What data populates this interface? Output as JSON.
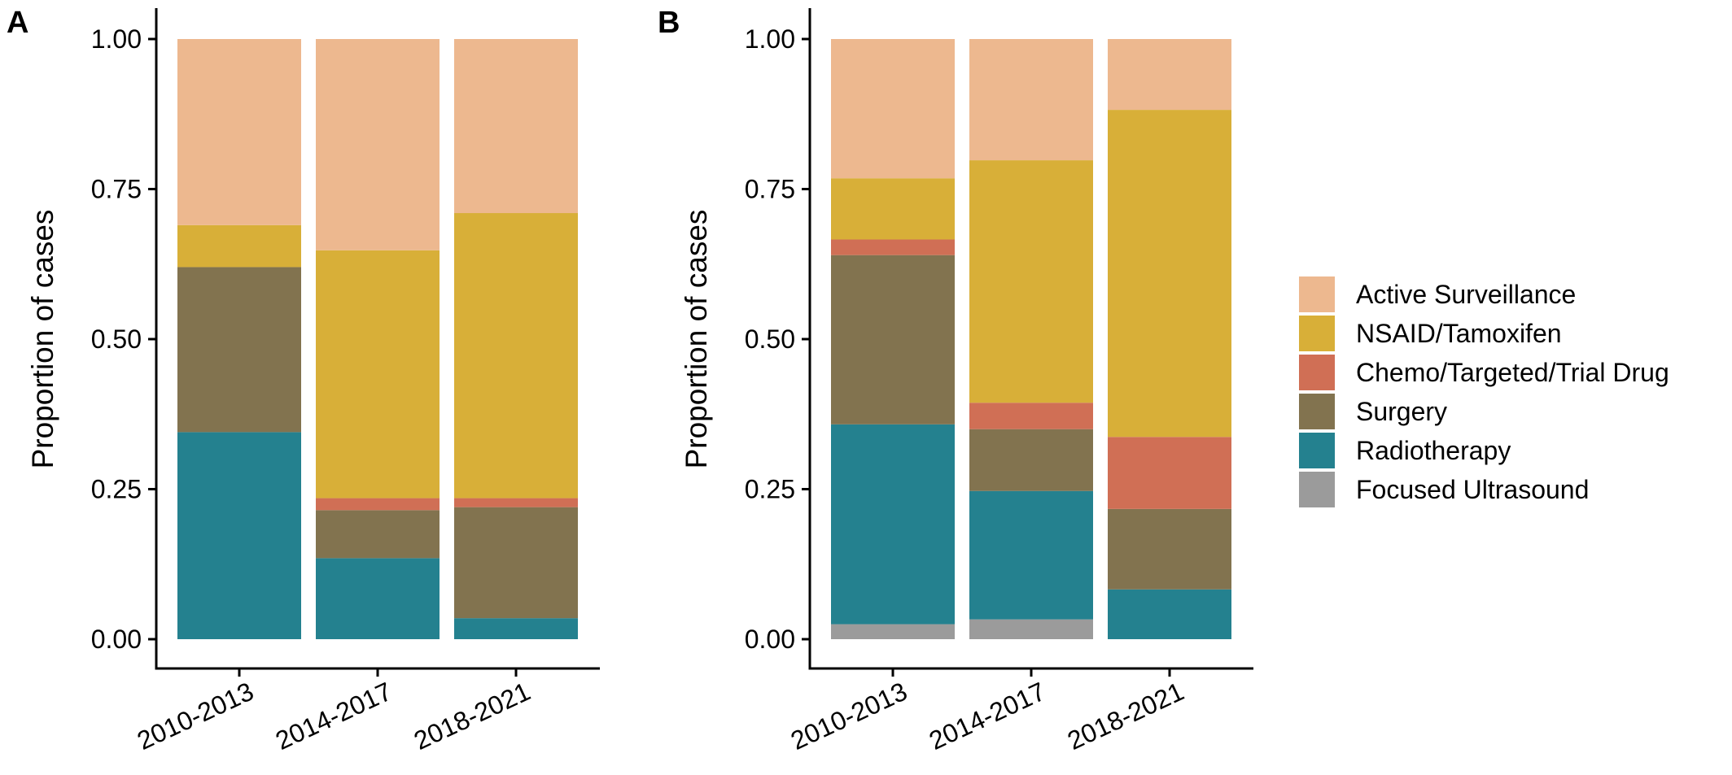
{
  "chart_data": [
    {
      "type": "bar",
      "stacked": true,
      "panel_label": "A",
      "ylabel": "Proportion of cases",
      "xlabel": "",
      "ylim": [
        0,
        1
      ],
      "yticks": [
        "0.00",
        "0.25",
        "0.50",
        "0.75",
        "1.00"
      ],
      "categories": [
        "2010-2013",
        "2014-2017",
        "2018-2021"
      ],
      "series": [
        {
          "name": "Focused Ultrasound",
          "values": [
            0.0,
            0.0,
            0.0
          ]
        },
        {
          "name": "Radiotherapy",
          "values": [
            0.345,
            0.135,
            0.035
          ]
        },
        {
          "name": "Surgery",
          "values": [
            0.275,
            0.08,
            0.185
          ]
        },
        {
          "name": "Chemo/Targeted/Trial Drug",
          "values": [
            0.0,
            0.02,
            0.015
          ]
        },
        {
          "name": "NSAID/Tamoxifen",
          "values": [
            0.07,
            0.413,
            0.475
          ]
        },
        {
          "name": "Active Surveillance",
          "values": [
            0.31,
            0.352,
            0.29
          ]
        }
      ]
    },
    {
      "type": "bar",
      "stacked": true,
      "panel_label": "B",
      "ylabel": "Proportion of cases",
      "xlabel": "",
      "ylim": [
        0,
        1
      ],
      "yticks": [
        "0.00",
        "0.25",
        "0.50",
        "0.75",
        "1.00"
      ],
      "categories": [
        "2010-2013",
        "2014-2017",
        "2018-2021"
      ],
      "series": [
        {
          "name": "Focused Ultrasound",
          "values": [
            0.025,
            0.033,
            0.0
          ]
        },
        {
          "name": "Radiotherapy",
          "values": [
            0.333,
            0.214,
            0.083
          ]
        },
        {
          "name": "Surgery",
          "values": [
            0.282,
            0.103,
            0.134
          ]
        },
        {
          "name": "Chemo/Targeted/Trial Drug",
          "values": [
            0.026,
            0.044,
            0.12
          ]
        },
        {
          "name": "NSAID/Tamoxifen",
          "values": [
            0.102,
            0.404,
            0.545
          ]
        },
        {
          "name": "Active Surveillance",
          "values": [
            0.232,
            0.202,
            0.118
          ]
        }
      ]
    }
  ],
  "legend": {
    "placement": "right",
    "items": [
      {
        "name": "Active Surveillance",
        "color": "#EDB88F"
      },
      {
        "name": "NSAID/Tamoxifen",
        "color": "#D8AF38"
      },
      {
        "name": "Chemo/Targeted/Trial Drug",
        "color": "#D06F55"
      },
      {
        "name": "Surgery",
        "color": "#82734F"
      },
      {
        "name": "Radiotherapy",
        "color": "#24818F"
      },
      {
        "name": "Focused Ultrasound",
        "color": "#9B9B9B"
      }
    ]
  },
  "colors": {
    "Active Surveillance": "#EDB88F",
    "NSAID/Tamoxifen": "#D8AF38",
    "Chemo/Targeted/Trial Drug": "#D06F55",
    "Surgery": "#82734F",
    "Radiotherapy": "#24818F",
    "Focused Ultrasound": "#9B9B9B"
  }
}
